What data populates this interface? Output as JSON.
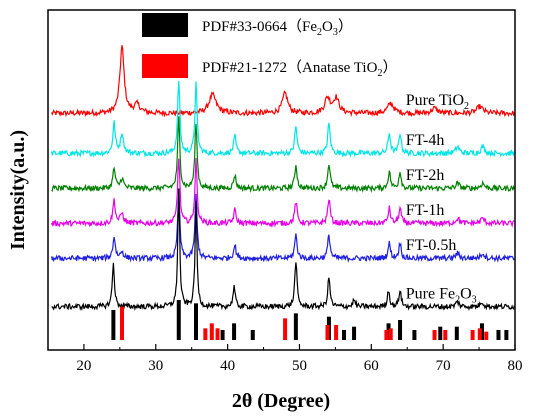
{
  "chart_data": {
    "type": "line",
    "xlabel": "2θ (Degree)",
    "ylabel": "Intensity(a.u.)",
    "xlim": [
      15,
      80
    ],
    "x_ticks": [
      "20",
      "30",
      "40",
      "50",
      "60",
      "70",
      "80"
    ],
    "y_ticks_shown": false,
    "grid": false,
    "legend": {
      "placement": "top-center",
      "entries": [
        {
          "label_main": "PDF#33-0664（Fe",
          "sub1": "2",
          "mid": "O",
          "sub2": "3",
          "end": "）",
          "color": "#000000"
        },
        {
          "label_main": "PDF#21-1272（Anatase TiO",
          "sub1": "2",
          "mid": "",
          "sub2": "",
          "end": "）",
          "color": "#ff0000"
        }
      ]
    },
    "series": [
      {
        "name_main": "Pure TiO",
        "name_sub": "2",
        "color": "#ff0000",
        "baseline": 6.2,
        "peaks": [
          [
            25.3,
            2.0,
            0.35
          ],
          [
            27.4,
            0.25,
            0.5
          ],
          [
            37.9,
            0.55,
            0.6
          ],
          [
            48.0,
            0.6,
            0.45
          ],
          [
            53.9,
            0.45,
            0.45
          ],
          [
            55.1,
            0.45,
            0.45
          ],
          [
            62.7,
            0.3,
            0.5
          ],
          [
            68.8,
            0.15,
            0.5
          ],
          [
            75.1,
            0.2,
            0.5
          ]
        ]
      },
      {
        "name_main": "FT-4h",
        "name_sub": "",
        "color": "#00e5e5",
        "baseline": 5.0,
        "peaks": [
          [
            24.2,
            0.9,
            0.2
          ],
          [
            25.3,
            0.6,
            0.25
          ],
          [
            33.2,
            2.2,
            0.18
          ],
          [
            35.6,
            2.1,
            0.18
          ],
          [
            41.0,
            0.5,
            0.2
          ],
          [
            49.5,
            0.8,
            0.2
          ],
          [
            54.1,
            0.9,
            0.2
          ],
          [
            62.5,
            0.6,
            0.2
          ],
          [
            64.0,
            0.6,
            0.2
          ],
          [
            72.0,
            0.2,
            0.3
          ],
          [
            75.5,
            0.2,
            0.3
          ]
        ]
      },
      {
        "name_main": "FT-2h",
        "name_sub": "",
        "color": "#008000",
        "baseline": 3.95,
        "peaks": [
          [
            24.2,
            0.6,
            0.2
          ],
          [
            25.3,
            0.3,
            0.25
          ],
          [
            33.2,
            2.1,
            0.18
          ],
          [
            35.6,
            2.0,
            0.18
          ],
          [
            41.0,
            0.4,
            0.2
          ],
          [
            49.5,
            0.7,
            0.2
          ],
          [
            54.1,
            0.75,
            0.2
          ],
          [
            62.5,
            0.5,
            0.2
          ],
          [
            64.0,
            0.5,
            0.2
          ],
          [
            72.0,
            0.15,
            0.3
          ],
          [
            75.5,
            0.15,
            0.3
          ]
        ]
      },
      {
        "name_main": "FT-1h",
        "name_sub": "",
        "color": "#e600e6",
        "baseline": 2.9,
        "peaks": [
          [
            24.2,
            0.7,
            0.2
          ],
          [
            25.3,
            0.3,
            0.25
          ],
          [
            33.2,
            2.0,
            0.18
          ],
          [
            35.6,
            1.9,
            0.18
          ],
          [
            41.0,
            0.4,
            0.2
          ],
          [
            49.5,
            0.65,
            0.2
          ],
          [
            54.1,
            0.75,
            0.2
          ],
          [
            62.5,
            0.45,
            0.2
          ],
          [
            64.0,
            0.45,
            0.2
          ],
          [
            72.0,
            0.15,
            0.3
          ],
          [
            75.5,
            0.15,
            0.3
          ]
        ]
      },
      {
        "name_main": "FT-0.5h",
        "name_sub": "",
        "color": "#1f1fe0",
        "baseline": 1.85,
        "peaks": [
          [
            24.2,
            0.65,
            0.2
          ],
          [
            25.3,
            0.2,
            0.25
          ],
          [
            33.2,
            2.0,
            0.18
          ],
          [
            35.6,
            1.9,
            0.18
          ],
          [
            41.0,
            0.4,
            0.2
          ],
          [
            49.5,
            0.7,
            0.2
          ],
          [
            54.1,
            0.7,
            0.2
          ],
          [
            62.5,
            0.45,
            0.2
          ],
          [
            64.0,
            0.45,
            0.2
          ],
          [
            72.0,
            0.15,
            0.3
          ],
          [
            75.5,
            0.15,
            0.3
          ]
        ]
      },
      {
        "name_main": "Pure Fe",
        "name_sub": "2",
        "name_mid": "O",
        "name_sub2": "3",
        "color": "#000000",
        "baseline": 0.4,
        "peaks": [
          [
            24.1,
            1.3,
            0.18
          ],
          [
            33.2,
            3.5,
            0.16
          ],
          [
            35.6,
            3.1,
            0.16
          ],
          [
            40.9,
            0.6,
            0.18
          ],
          [
            49.5,
            1.4,
            0.18
          ],
          [
            54.1,
            0.9,
            0.18
          ],
          [
            57.6,
            0.2,
            0.2
          ],
          [
            62.4,
            0.5,
            0.18
          ],
          [
            64.0,
            0.5,
            0.18
          ],
          [
            72.0,
            0.15,
            0.25
          ],
          [
            75.4,
            0.15,
            0.25
          ]
        ]
      }
    ],
    "reference_fe2o3": {
      "color": "#000000",
      "y0": -0.6,
      "positions": [
        24.1,
        33.2,
        35.6,
        39.3,
        40.9,
        43.5,
        49.5,
        54.1,
        56.2,
        57.6,
        62.4,
        64.0,
        66.0,
        69.6,
        71.9,
        75.4,
        77.7,
        78.8
      ],
      "heights": [
        0.9,
        1.2,
        1.1,
        0.3,
        0.5,
        0.3,
        0.8,
        0.7,
        0.3,
        0.4,
        0.5,
        0.6,
        0.3,
        0.4,
        0.4,
        0.5,
        0.3,
        0.3
      ]
    },
    "reference_tio2": {
      "color": "#ff0000",
      "y0": -0.6,
      "positions": [
        25.3,
        36.9,
        37.8,
        38.6,
        48.0,
        53.9,
        55.1,
        62.1,
        62.7,
        68.8,
        70.3,
        74.1,
        75.1,
        76.0
      ],
      "heights": [
        1.0,
        0.35,
        0.5,
        0.35,
        0.65,
        0.45,
        0.45,
        0.3,
        0.35,
        0.3,
        0.3,
        0.3,
        0.35,
        0.25
      ]
    }
  }
}
